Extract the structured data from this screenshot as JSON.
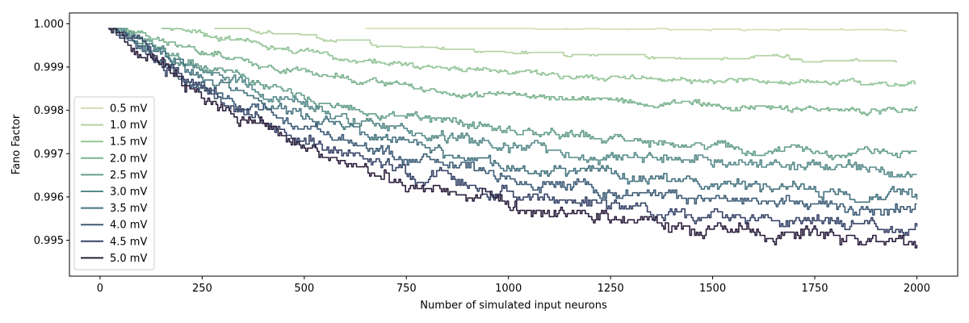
{
  "chart_data": {
    "type": "line",
    "title": "",
    "xlabel": "Number of simulated input neurons",
    "ylabel": "Fano Factor",
    "xlim": [
      -75,
      2100
    ],
    "ylim": [
      0.99417,
      1.00025
    ],
    "xticks": [
      0,
      250,
      500,
      750,
      1000,
      1250,
      1500,
      1750,
      2000
    ],
    "yticks": [
      0.995,
      0.996,
      0.997,
      0.998,
      0.999,
      1.0
    ],
    "ytick_labels": [
      "0.995",
      "0.996",
      "0.997",
      "0.998",
      "0.999",
      "1.000"
    ],
    "grid": false,
    "legend_position": "center-left",
    "series": [
      {
        "name": "0.5 mV",
        "color": "#d3dfb3",
        "start": 650,
        "end_value": 0.99985,
        "noise": 3e-05
      },
      {
        "name": "1.0 mV",
        "color": "#b2d2a2",
        "start": 280,
        "end_value": 0.99915,
        "noise": 6e-05
      },
      {
        "name": "1.5 mV",
        "color": "#94c598",
        "start": 150,
        "end_value": 0.9986,
        "noise": 7e-05
      },
      {
        "name": "2.0 mV",
        "color": "#7bb38e",
        "start": 20,
        "end_value": 0.998,
        "noise": 9e-05
      },
      {
        "name": "2.5 mV",
        "color": "#669f8c",
        "start": 20,
        "end_value": 0.997,
        "noise": 0.00012
      },
      {
        "name": "3.0 mV",
        "color": "#558a89",
        "start": 20,
        "end_value": 0.9966,
        "noise": 0.00014
      },
      {
        "name": "3.5 mV",
        "color": "#467480",
        "start": 20,
        "end_value": 0.9961,
        "noise": 0.00015
      },
      {
        "name": "4.0 mV",
        "color": "#3d5c77",
        "start": 20,
        "end_value": 0.9957,
        "noise": 0.00016
      },
      {
        "name": "4.5 mV",
        "color": "#374468",
        "start": 20,
        "end_value": 0.9953,
        "noise": 0.00017
      },
      {
        "name": "5.0 mV",
        "color": "#2b1f3d",
        "start": 20,
        "end_value": 0.995,
        "noise": 0.00018
      }
    ]
  }
}
